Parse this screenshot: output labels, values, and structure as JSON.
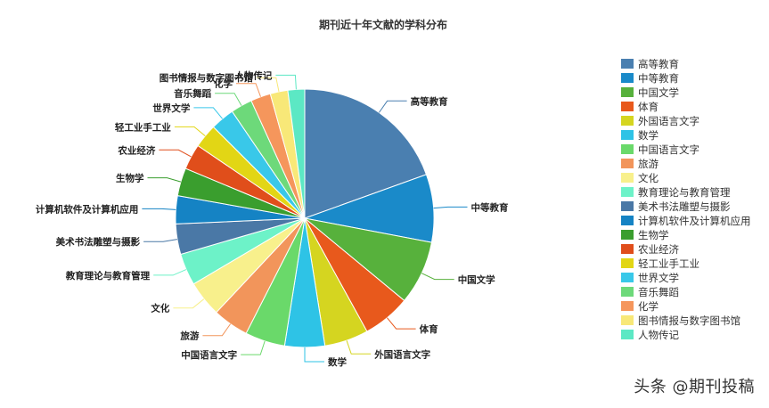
{
  "chart_data": {
    "type": "pie",
    "title": "期刊近十年文献的学科分布",
    "legend_position": "right",
    "categories": [
      "高等教育",
      "中等教育",
      "中国文学",
      "体育",
      "外国语言文字",
      "数学",
      "中国语言文字",
      "旅游",
      "文化",
      "教育理论与教育管理",
      "美术书法雕塑与摄影",
      "计算机软件及计算机应用",
      "生物学",
      "农业经济",
      "轻工业手工业",
      "世界文学",
      "音乐舞蹈",
      "化学",
      "图书情报与数字图书馆",
      "人物传记"
    ],
    "values": [
      19.5,
      8.5,
      8.0,
      6.0,
      5.5,
      5.0,
      5.0,
      4.5,
      4.5,
      4.0,
      3.8,
      3.5,
      3.5,
      3.2,
      3.0,
      3.0,
      2.7,
      2.5,
      2.2,
      2.1
    ],
    "colors": [
      "#4a7fb0",
      "#1a8ac9",
      "#57b13c",
      "#e8591c",
      "#d5d520",
      "#2ec3e6",
      "#6ad96a",
      "#f2955b",
      "#f8f08c",
      "#6df2c8",
      "#4a78a6",
      "#1583c4",
      "#3a9e2e",
      "#e04e1b",
      "#e2d615",
      "#39c8e9",
      "#6dd97a",
      "#f5965c",
      "#f8e878",
      "#5ce8c4"
    ]
  },
  "watermark": "头条 @期刊投稿"
}
